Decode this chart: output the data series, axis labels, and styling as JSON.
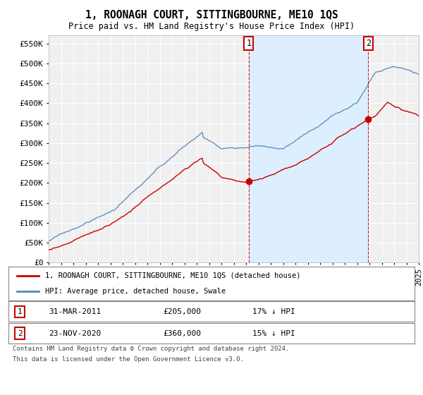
{
  "title": "1, ROONAGH COURT, SITTINGBOURNE, ME10 1QS",
  "subtitle": "Price paid vs. HM Land Registry's House Price Index (HPI)",
  "background_color": "#ffffff",
  "plot_bg_color": "#f0f0f0",
  "grid_color": "#ffffff",
  "hpi_color": "#5588bb",
  "hpi_fill_color": "#ddeeff",
  "price_color": "#cc0000",
  "ylim": [
    0,
    570000
  ],
  "yticks": [
    0,
    50000,
    100000,
    150000,
    200000,
    250000,
    300000,
    350000,
    400000,
    450000,
    500000,
    550000
  ],
  "ytick_labels": [
    "£0",
    "£50K",
    "£100K",
    "£150K",
    "£200K",
    "£250K",
    "£300K",
    "£350K",
    "£400K",
    "£450K",
    "£500K",
    "£550K"
  ],
  "sale1_date": 2011.25,
  "sale1_price": 205000,
  "sale2_date": 2020.9,
  "sale2_price": 360000,
  "legend_line1": "1, ROONAGH COURT, SITTINGBOURNE, ME10 1QS (detached house)",
  "legend_line2": "HPI: Average price, detached house, Swale",
  "table_row1": [
    "1",
    "31-MAR-2011",
    "£205,000",
    "17% ↓ HPI"
  ],
  "table_row2": [
    "2",
    "23-NOV-2020",
    "£360,000",
    "15% ↓ HPI"
  ],
  "footnote1": "Contains HM Land Registry data © Crown copyright and database right 2024.",
  "footnote2": "This data is licensed under the Open Government Licence v3.0.",
  "xstart": 1995,
  "xend": 2025
}
